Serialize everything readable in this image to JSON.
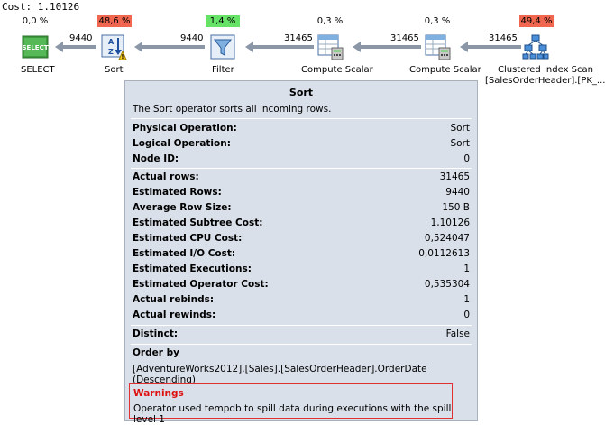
{
  "plan": {
    "cost_label": "Cost: 1.10126",
    "operators": [
      {
        "name": "SELECT",
        "pct": "0,0 %",
        "pct_style": "none",
        "icon": "select-icon",
        "label": "SELECT",
        "label2": ""
      },
      {
        "name": "Sort",
        "pct": "48,6 %",
        "pct_style": "red",
        "icon": "sort-warning-icon",
        "label": "Sort",
        "label2": ""
      },
      {
        "name": "Filter",
        "pct": "1,4 %",
        "pct_style": "green",
        "icon": "filter-icon",
        "label": "Filter",
        "label2": ""
      },
      {
        "name": "Compute Scalar",
        "pct": "0,3 %",
        "pct_style": "none",
        "icon": "compute-scalar-icon",
        "label": "Compute Scalar",
        "label2": ""
      },
      {
        "name": "Compute Scalar",
        "pct": "0,3 %",
        "pct_style": "none",
        "icon": "compute-scalar-icon",
        "label": "Compute Scalar",
        "label2": ""
      },
      {
        "name": "Clustered Index Scan",
        "pct": "49,4 %",
        "pct_style": "red",
        "icon": "clustered-index-scan-icon",
        "label": "Clustered Index Scan",
        "label2": "[SalesOrderHeader].[PK_..."
      }
    ],
    "flows": [
      "9440",
      "9440",
      "31465",
      "31465",
      "31465"
    ]
  },
  "tooltip": {
    "title": "Sort",
    "description": "The Sort operator sorts all incoming rows.",
    "group1": [
      {
        "key": "Physical Operation:",
        "value": "Sort"
      },
      {
        "key": "Logical Operation:",
        "value": "Sort"
      },
      {
        "key": "Node ID:",
        "value": "0"
      }
    ],
    "group2": [
      {
        "key": "Actual rows:",
        "value": "31465"
      },
      {
        "key": "Estimated Rows:",
        "value": "9440"
      },
      {
        "key": "Average Row Size:",
        "value": "150 B"
      },
      {
        "key": "Estimated Subtree Cost:",
        "value": "1,10126"
      },
      {
        "key": "Estimated CPU Cost:",
        "value": "0,524047"
      },
      {
        "key": "Estimated I/O Cost:",
        "value": "0,0112613"
      },
      {
        "key": "Estimated Executions:",
        "value": "1"
      },
      {
        "key": "Estimated Operator Cost:",
        "value": "0,535304"
      },
      {
        "key": "Actual rebinds:",
        "value": "1"
      },
      {
        "key": "Actual rewinds:",
        "value": "0"
      }
    ],
    "group3": [
      {
        "key": "Distinct:",
        "value": "False"
      }
    ],
    "order_by_heading": "Order by",
    "order_by_value": "[AdventureWorks2012].[Sales].[SalesOrderHeader].OrderDate (Descending)",
    "warnings_heading": "Warnings",
    "warnings_text": "Operator used tempdb to spill data during executions with the spill level 1"
  }
}
